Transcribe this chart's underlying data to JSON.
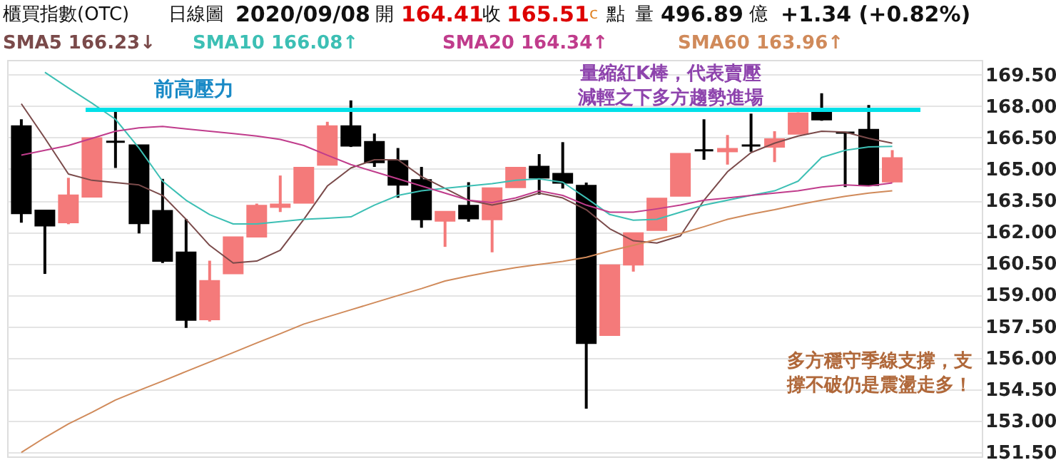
{
  "chart_data": {
    "type": "candlestick",
    "categories": [
      null,
      null,
      null,
      null,
      null,
      null,
      null,
      null,
      null,
      null,
      null,
      null,
      null,
      null,
      null,
      null,
      null,
      null,
      null,
      null,
      null,
      null,
      null,
      null,
      null,
      null,
      null,
      null,
      null,
      null,
      null,
      null,
      null,
      null,
      null,
      null,
      null,
      null
    ],
    "ohlc": [
      [
        167.03,
        167.37,
        162.44,
        162.9
      ],
      [
        163.01,
        163.01,
        160.0,
        162.31
      ],
      [
        162.47,
        164.58,
        162.37,
        163.73
      ],
      [
        163.69,
        166.5,
        163.65,
        166.46
      ],
      [
        166.3,
        167.75,
        165.05,
        166.3
      ],
      [
        166.12,
        166.12,
        161.93,
        162.42
      ],
      [
        162.99,
        164.53,
        160.52,
        160.63
      ],
      [
        161.01,
        162.61,
        157.43,
        157.82
      ],
      [
        157.84,
        160.63,
        157.73,
        159.65
      ],
      [
        160.04,
        161.74,
        160.04,
        161.74
      ],
      [
        161.79,
        163.35,
        161.79,
        163.24
      ],
      [
        163.2,
        164.69,
        162.95,
        163.3
      ],
      [
        163.4,
        165.05,
        163.4,
        165.05
      ],
      [
        165.21,
        167.25,
        165.21,
        167.03
      ],
      [
        167.03,
        168.27,
        166.05,
        166.12
      ],
      [
        166.28,
        166.69,
        165.1,
        165.33
      ],
      [
        165.37,
        166.0,
        163.63,
        164.26
      ],
      [
        164.46,
        165.1,
        162.2,
        162.61
      ],
      [
        162.54,
        162.95,
        161.29,
        162.95
      ],
      [
        163.24,
        164.37,
        162.49,
        162.65
      ],
      [
        162.61,
        164.07,
        161.03,
        164.07
      ],
      [
        164.14,
        165.05,
        164.14,
        165.05
      ],
      [
        165.1,
        165.71,
        163.78,
        164.6
      ],
      [
        164.76,
        166.28,
        164.07,
        164.35
      ],
      [
        164.19,
        164.35,
        153.58,
        156.71
      ],
      [
        157.1,
        160.4,
        157.1,
        160.4
      ],
      [
        160.45,
        161.93,
        160.11,
        161.93
      ],
      [
        162.1,
        163.58,
        162.1,
        163.58
      ],
      [
        163.73,
        165.71,
        163.73,
        165.71
      ],
      [
        165.89,
        167.37,
        165.44,
        165.89
      ],
      [
        165.85,
        166.62,
        165.21,
        165.95
      ],
      [
        166.12,
        167.64,
        165.82,
        166.12
      ],
      [
        166.07,
        166.8,
        165.33,
        166.41
      ],
      [
        166.69,
        167.7,
        166.69,
        167.64
      ],
      [
        167.71,
        168.61,
        167.3,
        167.37
      ],
      [
        166.73,
        166.73,
        164.14,
        166.73
      ],
      [
        166.86,
        168.05,
        164.24,
        164.24
      ],
      [
        164.41,
        165.9,
        164.35,
        165.51
      ]
    ],
    "colors": [
      "#000000",
      "#000000",
      "#f47a7a",
      "#f47a7a",
      "#000000",
      "#000000",
      "#000000",
      "#000000",
      "#f47a7a",
      "#f47a7a",
      "#f47a7a",
      "#f47a7a",
      "#f47a7a",
      "#f47a7a",
      "#000000",
      "#000000",
      "#000000",
      "#000000",
      "#f47a7a",
      "#000000",
      "#f47a7a",
      "#f47a7a",
      "#000000",
      "#000000",
      "#000000",
      "#f47a7a",
      "#f47a7a",
      "#f47a7a",
      "#f47a7a",
      "#000000",
      "#f47a7a",
      "#000000",
      "#f47a7a",
      "#f47a7a",
      "#000000",
      "#000000",
      "#000000",
      "#f47a7a"
    ],
    "series": [
      {
        "name": "SMA5 166.23↓",
        "type": "line",
        "color": "#7a4a4a",
        "values": [
          168.11,
          166.47,
          164.76,
          164.46,
          164.35,
          164.24,
          163.74,
          162.6,
          161.36,
          160.52,
          160.61,
          161.13,
          162.6,
          164.19,
          165.05,
          165.44,
          165.44,
          164.64,
          164.08,
          163.51,
          163.28,
          163.51,
          163.85,
          163.62,
          163.06,
          162.15,
          161.58,
          161.47,
          161.81,
          163.51,
          164.87,
          165.78,
          166.23,
          166.57,
          166.8,
          166.76,
          166.46,
          166.23
        ]
      },
      {
        "name": "SMA10 166.08↑",
        "type": "line",
        "color": "#3cbfb4",
        "values": [
          null,
          169.61,
          168.86,
          168.14,
          167.37,
          166.0,
          164.42,
          163.51,
          162.83,
          162.38,
          162.38,
          162.49,
          162.6,
          162.65,
          162.72,
          163.28,
          163.74,
          163.96,
          164.08,
          164.19,
          164.3,
          164.46,
          164.53,
          164.37,
          163.62,
          162.83,
          162.56,
          162.6,
          162.94,
          163.28,
          163.51,
          163.74,
          163.96,
          164.42,
          165.55,
          165.89,
          166.05,
          166.08
        ]
      },
      {
        "name": "SMA20 164.34↑",
        "type": "line",
        "color": "#c03c8c",
        "values": [
          165.66,
          165.89,
          166.12,
          166.46,
          166.8,
          166.96,
          167.03,
          166.91,
          166.8,
          166.69,
          166.57,
          166.41,
          166.12,
          165.66,
          165.21,
          164.87,
          164.53,
          164.19,
          163.85,
          163.51,
          163.4,
          163.62,
          163.96,
          163.74,
          163.28,
          162.94,
          162.94,
          163.1,
          163.28,
          163.51,
          163.62,
          163.74,
          163.85,
          163.96,
          164.14,
          164.24,
          164.19,
          164.34
        ]
      },
      {
        "name": "SMA60 163.96↑",
        "type": "line",
        "color": "#d08a5a",
        "values": [
          151.49,
          152.2,
          152.85,
          153.4,
          153.99,
          154.45,
          154.89,
          155.35,
          155.8,
          156.25,
          156.71,
          157.15,
          157.61,
          157.95,
          158.29,
          158.63,
          158.97,
          159.3,
          159.66,
          159.9,
          160.11,
          160.3,
          160.45,
          160.6,
          160.79,
          161.1,
          161.36,
          161.65,
          161.92,
          162.25,
          162.6,
          162.85,
          163.06,
          163.3,
          163.51,
          163.7,
          163.85,
          163.96
        ]
      }
    ],
    "ylim": [
      151.3,
      170.2
    ],
    "yticks": [
      {
        "value": 151.5,
        "label": "151.50"
      },
      {
        "value": 153,
        "label": "153.00"
      },
      {
        "value": 154.5,
        "label": "154.50"
      },
      {
        "value": 156,
        "label": "156.00"
      },
      {
        "value": 157.5,
        "label": "157.50"
      },
      {
        "value": 159,
        "label": "159.00"
      },
      {
        "value": 160.5,
        "label": "160.50"
      },
      {
        "value": 162,
        "label": "162.00"
      },
      {
        "value": 163.5,
        "label": "163.50"
      },
      {
        "value": 165,
        "label": "165.00"
      },
      {
        "value": 166.5,
        "label": "166.50"
      },
      {
        "value": 168,
        "label": "168.00"
      },
      {
        "value": 169.5,
        "label": "169.50"
      }
    ],
    "grid": "y",
    "legend": "top",
    "tick_labels": "y",
    "ref_lines": [
      {
        "axis": "y",
        "value": 167.82,
        "label": "前高壓力",
        "color": "#00e0e8"
      }
    ],
    "annotations": [
      "櫃買指數(OTC)",
      "日線圖",
      "2020/09/08",
      "開",
      "164.41",
      "收",
      "165.51",
      "c",
      "點",
      "量",
      "496.89",
      "億",
      "+1.34 (+0.82%)",
      "量縮紅K棒，代表賣壓減輕之下多方趨勢進場",
      "多方穩守季線支撐，支撐不破仍是震盪走多！"
    ]
  }
}
